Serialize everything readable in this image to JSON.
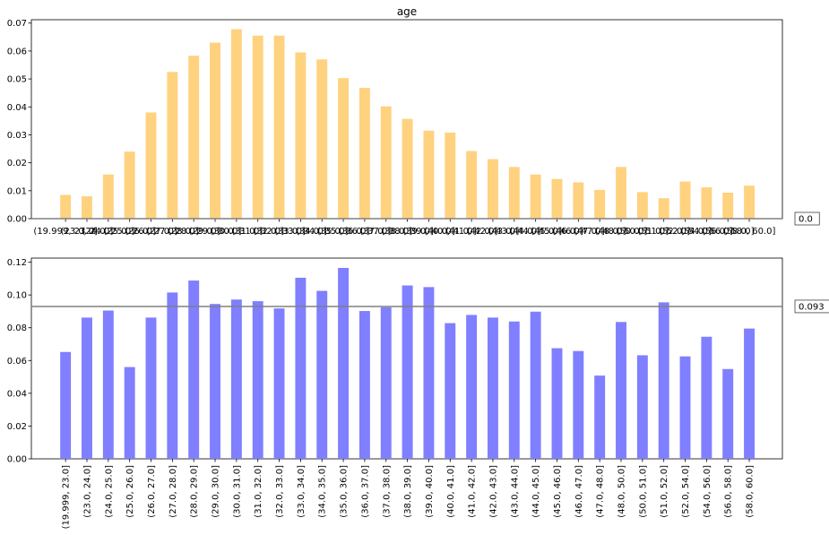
{
  "chart_data": [
    {
      "type": "bar",
      "title": "age",
      "color": "#ffd27f",
      "categories": [
        "(19.999, 23.0]",
        "(23.0, 24.0]",
        "(24.0, 25.0]",
        "(25.0, 26.0]",
        "(26.0, 27.0]",
        "(27.0, 28.0]",
        "(28.0, 29.0]",
        "(29.0, 30.0]",
        "(30.0, 31.0]",
        "(31.0, 32.0]",
        "(32.0, 33.0]",
        "(33.0, 34.0]",
        "(34.0, 35.0]",
        "(35.0, 36.0]",
        "(36.0, 37.0]",
        "(37.0, 38.0]",
        "(38.0, 39.0]",
        "(39.0, 40.0]",
        "(40.0, 41.0]",
        "(41.0, 42.0]",
        "(42.0, 43.0]",
        "(43.0, 44.0]",
        "(44.0, 45.0]",
        "(45.0, 46.0]",
        "(46.0, 47.0]",
        "(47.0, 48.0]",
        "(48.0, 50.0]",
        "(50.0, 51.0]",
        "(51.0, 52.0]",
        "(52.0, 54.0]",
        "(54.0, 56.0]",
        "(56.0, 58.0]",
        "(58.0, 60.0]"
      ],
      "values": [
        0.0085,
        0.008,
        0.0158,
        0.024,
        0.038,
        0.0525,
        0.0583,
        0.063,
        0.0678,
        0.0655,
        0.0655,
        0.0595,
        0.057,
        0.0503,
        0.0468,
        0.0402,
        0.0357,
        0.0315,
        0.0308,
        0.0242,
        0.0213,
        0.0185,
        0.0158,
        0.0142,
        0.013,
        0.0103,
        0.0185,
        0.0095,
        0.0073,
        0.0133,
        0.0112,
        0.0093,
        0.0118
      ],
      "ylim": [
        0,
        0.0712
      ],
      "yticks": [
        0.0,
        0.01,
        0.02,
        0.03,
        0.04,
        0.05,
        0.06,
        0.07
      ],
      "ytick_labels": [
        "0.00",
        "0.01",
        "0.02",
        "0.03",
        "0.04",
        "0.05",
        "0.06",
        "0.07"
      ],
      "ref_line": 0.0,
      "ref_label": "0.0"
    },
    {
      "type": "bar",
      "title": "",
      "color": "#7f7fff",
      "categories": [
        "(19.999, 23.0]",
        "(23.0, 24.0]",
        "(24.0, 25.0]",
        "(25.0, 26.0]",
        "(26.0, 27.0]",
        "(27.0, 28.0]",
        "(28.0, 29.0]",
        "(29.0, 30.0]",
        "(30.0, 31.0]",
        "(31.0, 32.0]",
        "(32.0, 33.0]",
        "(33.0, 34.0]",
        "(34.0, 35.0]",
        "(35.0, 36.0]",
        "(36.0, 37.0]",
        "(37.0, 38.0]",
        "(38.0, 39.0]",
        "(39.0, 40.0]",
        "(40.0, 41.0]",
        "(41.0, 42.0]",
        "(42.0, 43.0]",
        "(43.0, 44.0]",
        "(44.0, 45.0]",
        "(45.0, 46.0]",
        "(46.0, 47.0]",
        "(47.0, 48.0]",
        "(48.0, 50.0]",
        "(50.0, 51.0]",
        "(51.0, 52.0]",
        "(52.0, 54.0]",
        "(54.0, 56.0]",
        "(56.0, 58.0]",
        "(58.0, 60.0]"
      ],
      "values": [
        0.0652,
        0.0862,
        0.0905,
        0.056,
        0.0862,
        0.1015,
        0.1088,
        0.0945,
        0.0972,
        0.0962,
        0.0918,
        0.1105,
        0.1025,
        0.1165,
        0.0902,
        0.0925,
        0.1058,
        0.1048,
        0.0828,
        0.0878,
        0.0862,
        0.0838,
        0.0898,
        0.0675,
        0.0658,
        0.0508,
        0.0835,
        0.0632,
        0.0955,
        0.0625,
        0.0745,
        0.0548,
        0.0795
      ],
      "ylim": [
        0,
        0.1225
      ],
      "yticks": [
        0.0,
        0.02,
        0.04,
        0.06,
        0.08,
        0.1,
        0.12
      ],
      "ytick_labels": [
        "0.00",
        "0.02",
        "0.04",
        "0.06",
        "0.08",
        "0.10",
        "0.12"
      ],
      "ref_line": 0.093,
      "ref_label": "0.093"
    }
  ]
}
